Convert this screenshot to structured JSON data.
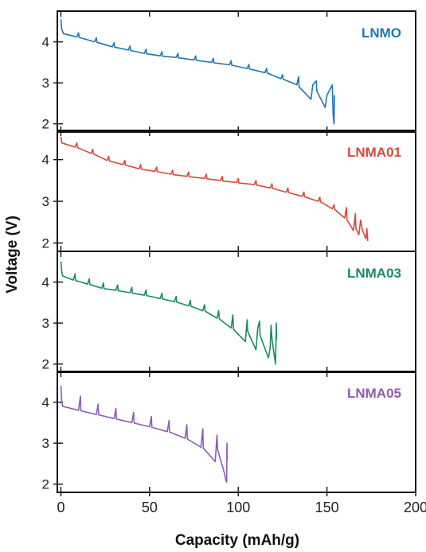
{
  "chart_data": {
    "type": "line",
    "xlabel": "Capacity (mAh/g)",
    "ylabel": "Voltage (V)",
    "xlim": [
      -2,
      200
    ],
    "x_ticks": [
      0,
      50,
      100,
      150,
      200
    ],
    "x_tick_labels": [
      "0",
      "50",
      "100",
      "150",
      "200"
    ],
    "y_ticks": [
      2,
      3,
      4
    ],
    "y_tick_labels": [
      "2",
      "3",
      "4"
    ],
    "panels": [
      {
        "name": "LNMO",
        "color": "#1f77b4",
        "ylim": [
          1.8,
          4.75
        ],
        "points": [
          [
            0,
            4.55
          ],
          [
            0.5,
            4.3
          ],
          [
            1.5,
            4.2
          ],
          [
            9,
            4.12
          ],
          [
            10,
            4.22
          ],
          [
            10.3,
            4.11
          ],
          [
            19,
            4.0
          ],
          [
            20,
            4.1
          ],
          [
            20.3,
            3.99
          ],
          [
            29,
            3.88
          ],
          [
            30,
            3.98
          ],
          [
            30.3,
            3.87
          ],
          [
            38,
            3.8
          ],
          [
            39,
            3.9
          ],
          [
            39.3,
            3.79
          ],
          [
            47,
            3.72
          ],
          [
            48,
            3.82
          ],
          [
            48.3,
            3.71
          ],
          [
            56,
            3.66
          ],
          [
            57,
            3.76
          ],
          [
            57.3,
            3.65
          ],
          [
            65,
            3.62
          ],
          [
            66,
            3.72
          ],
          [
            66.3,
            3.61
          ],
          [
            75,
            3.56
          ],
          [
            76,
            3.66
          ],
          [
            76.3,
            3.55
          ],
          [
            85,
            3.5
          ],
          [
            86,
            3.6
          ],
          [
            86.3,
            3.49
          ],
          [
            95,
            3.44
          ],
          [
            96,
            3.54
          ],
          [
            96.3,
            3.43
          ],
          [
            105,
            3.35
          ],
          [
            106,
            3.45
          ],
          [
            106.3,
            3.34
          ],
          [
            115,
            3.25
          ],
          [
            116,
            3.35
          ],
          [
            116.3,
            3.24
          ],
          [
            124,
            3.1
          ],
          [
            125,
            3.2
          ],
          [
            125.3,
            3.09
          ],
          [
            133,
            2.95
          ],
          [
            134,
            3.15
          ],
          [
            134.3,
            2.9
          ],
          [
            141,
            2.6
          ],
          [
            142,
            2.95
          ],
          [
            144,
            3.05
          ],
          [
            144.3,
            2.8
          ],
          [
            149,
            2.4
          ],
          [
            150,
            2.7
          ],
          [
            153,
            2.95
          ],
          [
            153.5,
            2.2
          ],
          [
            154,
            2.0
          ],
          [
            154.2,
            2.7
          ]
        ]
      },
      {
        "name": "LNMA01",
        "color": "#d9483b",
        "ylim": [
          1.8,
          4.7
        ],
        "points": [
          [
            0,
            4.55
          ],
          [
            0.5,
            4.4
          ],
          [
            8,
            4.3
          ],
          [
            9,
            4.4
          ],
          [
            9.3,
            4.29
          ],
          [
            17,
            4.15
          ],
          [
            18,
            4.25
          ],
          [
            18.3,
            4.14
          ],
          [
            26,
            3.98
          ],
          [
            27,
            4.08
          ],
          [
            27.3,
            3.97
          ],
          [
            35,
            3.88
          ],
          [
            36,
            3.98
          ],
          [
            36.3,
            3.87
          ],
          [
            44,
            3.78
          ],
          [
            45,
            3.88
          ],
          [
            45.3,
            3.77
          ],
          [
            53,
            3.72
          ],
          [
            54,
            3.82
          ],
          [
            54.3,
            3.71
          ],
          [
            62,
            3.65
          ],
          [
            63,
            3.75
          ],
          [
            63.3,
            3.64
          ],
          [
            71,
            3.6
          ],
          [
            72,
            3.7
          ],
          [
            72.3,
            3.59
          ],
          [
            81,
            3.55
          ],
          [
            82,
            3.65
          ],
          [
            82.3,
            3.54
          ],
          [
            90,
            3.5
          ],
          [
            91,
            3.6
          ],
          [
            91.3,
            3.49
          ],
          [
            99,
            3.45
          ],
          [
            100,
            3.55
          ],
          [
            100.3,
            3.44
          ],
          [
            109,
            3.4
          ],
          [
            110,
            3.5
          ],
          [
            110.3,
            3.39
          ],
          [
            118,
            3.32
          ],
          [
            119,
            3.42
          ],
          [
            119.3,
            3.31
          ],
          [
            127,
            3.22
          ],
          [
            128,
            3.32
          ],
          [
            128.3,
            3.21
          ],
          [
            136,
            3.12
          ],
          [
            137,
            3.22
          ],
          [
            137.3,
            3.11
          ],
          [
            145,
            3.0
          ],
          [
            146,
            3.1
          ],
          [
            146.3,
            2.99
          ],
          [
            153,
            2.82
          ],
          [
            154,
            2.92
          ],
          [
            154.3,
            2.81
          ],
          [
            160,
            2.6
          ],
          [
            161,
            2.85
          ],
          [
            161.3,
            2.55
          ],
          [
            165,
            2.3
          ],
          [
            166,
            2.7
          ],
          [
            166.3,
            2.35
          ],
          [
            168,
            2.2
          ],
          [
            169,
            2.55
          ],
          [
            170,
            2.3
          ],
          [
            172,
            2.1
          ],
          [
            172.5,
            2.35
          ],
          [
            173,
            2.05
          ]
        ]
      },
      {
        "name": "LNMA03",
        "color": "#1a8c5e",
        "ylim": [
          1.8,
          4.75
        ],
        "points": [
          [
            0,
            4.5
          ],
          [
            0.5,
            4.25
          ],
          [
            1,
            4.15
          ],
          [
            7,
            4.05
          ],
          [
            8,
            4.2
          ],
          [
            8.3,
            4.04
          ],
          [
            15,
            3.95
          ],
          [
            16,
            4.08
          ],
          [
            16.3,
            3.94
          ],
          [
            23,
            3.85
          ],
          [
            24,
            3.98
          ],
          [
            24.3,
            3.84
          ],
          [
            31,
            3.8
          ],
          [
            32,
            3.93
          ],
          [
            32.3,
            3.79
          ],
          [
            39,
            3.74
          ],
          [
            40,
            3.87
          ],
          [
            40.3,
            3.73
          ],
          [
            47,
            3.68
          ],
          [
            48,
            3.81
          ],
          [
            48.3,
            3.67
          ],
          [
            56,
            3.6
          ],
          [
            57,
            3.73
          ],
          [
            57.3,
            3.59
          ],
          [
            64,
            3.52
          ],
          [
            65,
            3.65
          ],
          [
            65.3,
            3.51
          ],
          [
            72,
            3.42
          ],
          [
            73,
            3.55
          ],
          [
            73.3,
            3.41
          ],
          [
            80,
            3.3
          ],
          [
            81,
            3.45
          ],
          [
            81.3,
            3.29
          ],
          [
            88,
            3.12
          ],
          [
            89,
            3.3
          ],
          [
            89.3,
            3.1
          ],
          [
            96,
            2.88
          ],
          [
            97,
            3.2
          ],
          [
            97.3,
            2.85
          ],
          [
            104,
            2.55
          ],
          [
            105,
            3.08
          ],
          [
            105.3,
            2.8
          ],
          [
            110,
            2.35
          ],
          [
            111,
            2.88
          ],
          [
            112,
            3.05
          ],
          [
            112.3,
            2.7
          ],
          [
            117,
            2.15
          ],
          [
            118,
            2.4
          ],
          [
            118.5,
            2.95
          ],
          [
            119,
            2.6
          ],
          [
            121,
            2.0
          ],
          [
            121.5,
            3.0
          ],
          [
            121.6,
            2.6
          ]
        ]
      },
      {
        "name": "LNMA05",
        "color": "#8e5bb5",
        "ylim": [
          1.8,
          4.75
        ],
        "points": [
          [
            0,
            4.4
          ],
          [
            0.5,
            4.0
          ],
          [
            1,
            3.9
          ],
          [
            10,
            3.8
          ],
          [
            11,
            4.15
          ],
          [
            11.3,
            3.79
          ],
          [
            20,
            3.7
          ],
          [
            21,
            3.95
          ],
          [
            21.3,
            3.69
          ],
          [
            30,
            3.6
          ],
          [
            31,
            3.85
          ],
          [
            31.3,
            3.59
          ],
          [
            40,
            3.5
          ],
          [
            41,
            3.75
          ],
          [
            41.3,
            3.49
          ],
          [
            50,
            3.4
          ],
          [
            51,
            3.65
          ],
          [
            51.3,
            3.39
          ],
          [
            60,
            3.28
          ],
          [
            61,
            3.55
          ],
          [
            61.3,
            3.27
          ],
          [
            70,
            3.12
          ],
          [
            71,
            3.45
          ],
          [
            71.3,
            3.1
          ],
          [
            79,
            2.9
          ],
          [
            80,
            3.35
          ],
          [
            80.3,
            2.88
          ],
          [
            87,
            2.55
          ],
          [
            88,
            3.2
          ],
          [
            88.3,
            2.85
          ],
          [
            92,
            2.3
          ],
          [
            93,
            2.1
          ],
          [
            93.5,
            2.05
          ],
          [
            93.6,
            3.0
          ],
          [
            93.8,
            2.6
          ]
        ]
      }
    ]
  }
}
